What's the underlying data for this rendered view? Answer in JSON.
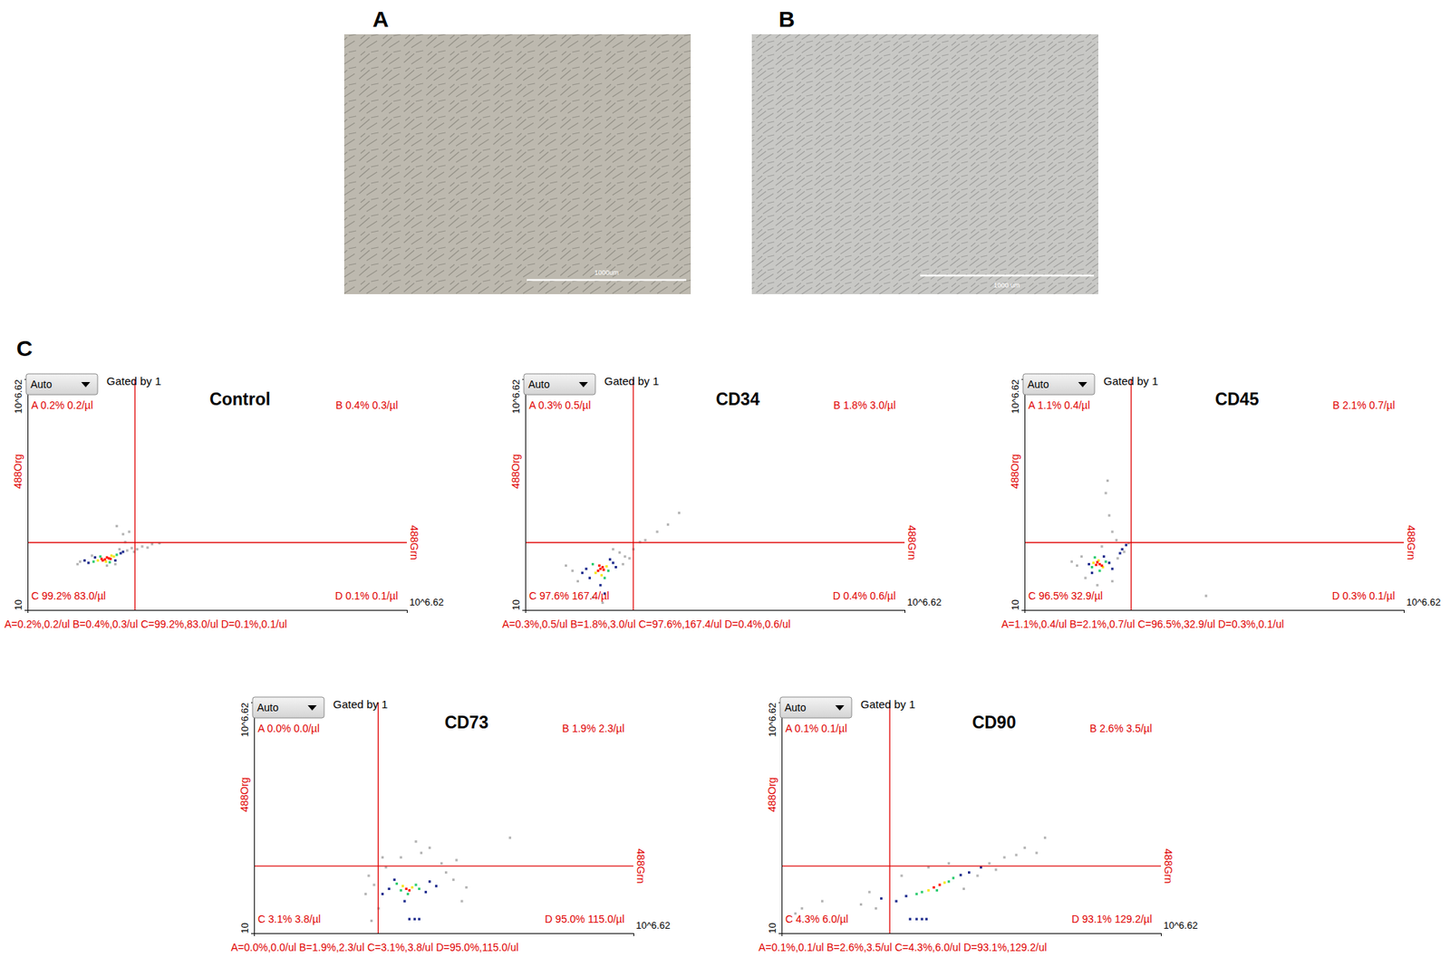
{
  "figure": {
    "panel_labels": [
      "A",
      "B",
      "C"
    ],
    "images": [
      {
        "scale_bar": "1000um"
      },
      {
        "scale_bar": "1000 um"
      }
    ]
  },
  "chart_data": [
    {
      "type": "scatter",
      "title": "Control",
      "xlabel": "488Grn",
      "ylabel": "488Org",
      "log": true,
      "xlim": [
        10,
        4168694
      ],
      "ylim": [
        10,
        4168694
      ],
      "xticks": [
        {
          "value": 4168694,
          "label": "10^6.62"
        }
      ],
      "yticks": [
        10,
        {
          "value": 4168694,
          "label": "10^6.62"
        }
      ],
      "gate": {
        "x": 390,
        "y": 437
      },
      "annotations": {
        "dropdown": "Auto",
        "gate_note": "Gated by 1",
        "quadrants": [
          "A 0.2% 0.2/µl",
          "B 0.4% 0.3/µl",
          "C 99.2% 83.0/µl",
          "D 0.1% 0.1/µl"
        ],
        "summary": "A=0.2%,0.2/ul B=0.4%,0.3/ul C=99.2%,83.0/ul D=0.1%,0.1/ul"
      },
      "series": [
        {
          "color": "#b4b4b4",
          "x": [
            60,
            300,
            350,
            420,
            380,
            55,
            230,
            500,
            260,
            210,
            320,
            280,
            90,
            700,
            900,
            600,
            150,
            200
          ],
          "values": [
            150,
            280,
            320,
            300,
            260,
            130,
            300,
            350,
            700,
            1100,
            800,
            450,
            210,
            400,
            420,
            330,
            120,
            130
          ]
        },
        {
          "color": "#1c2a8c",
          "x": [
            80,
            240,
            100,
            200,
            70,
            260
          ],
          "values": [
            140,
            240,
            190,
            160,
            160,
            260
          ]
        },
        {
          "color": "#2ecc71",
          "x": [
            95,
            210,
            120,
            165
          ],
          "values": [
            150,
            220,
            200,
            145
          ]
        },
        {
          "color": "#f5e616",
          "x": [
            110,
            190,
            145,
            175
          ],
          "values": [
            160,
            200,
            150,
            210
          ]
        },
        {
          "color": "#ff1a00",
          "x": [
            140,
            160,
            130,
            150,
            170,
            125
          ],
          "values": [
            170,
            180,
            160,
            190,
            175,
            175
          ]
        }
      ]
    },
    {
      "type": "scatter",
      "title": "CD34",
      "xlabel": "488Grn",
      "ylabel": "488Org",
      "log": true,
      "xlim": [
        10,
        4168694
      ],
      "ylim": [
        10,
        4168694
      ],
      "xticks": [
        {
          "value": 4168694,
          "label": "10^6.62"
        }
      ],
      "yticks": [
        10,
        {
          "value": 4168694,
          "label": "10^6.62"
        }
      ],
      "gate": {
        "x": 398,
        "y": 437
      },
      "annotations": {
        "dropdown": "Auto",
        "gate_note": "Gated by 1",
        "quadrants": [
          "A 0.3% 0.5/µl",
          "B 1.8% 3.0/µl",
          "C 97.6% 167.4/µl",
          "D 0.4% 0.6/µl"
        ],
        "summary": "A=0.3%,0.5/ul B=1.8%,3.0/ul C=97.6%,167.4/ul D=0.4%,0.6/ul"
      },
      "series": [
        {
          "color": "#b4b4b4",
          "x": [
            50,
            40,
            300,
            400,
            600,
            900,
            1300,
            1900,
            250,
            350,
            60,
            140,
            100,
            500,
            280,
            200
          ],
          "values": [
            90,
            120,
            200,
            300,
            500,
            800,
            1200,
            2300,
            250,
            180,
            50,
            15,
            20,
            450,
            130,
            300
          ]
        },
        {
          "color": "#1c2a8c",
          "x": [
            80,
            200,
            90,
            180,
            130,
            150,
            220,
            70
          ],
          "values": [
            100,
            140,
            60,
            170,
            40,
            25,
            110,
            80
          ]
        },
        {
          "color": "#2ecc71",
          "x": [
            100,
            170,
            150
          ],
          "values": [
            130,
            90,
            60
          ]
        },
        {
          "color": "#f5e616",
          "x": [
            110,
            160,
            135
          ],
          "values": [
            80,
            115,
            70
          ]
        },
        {
          "color": "#ff1a00",
          "x": [
            130,
            120,
            140,
            125,
            145
          ],
          "values": [
            100,
            90,
            110,
            120,
            95
          ]
        }
      ]
    },
    {
      "type": "scatter",
      "title": "CD45",
      "xlabel": "488Grn",
      "ylabel": "488Org",
      "log": true,
      "xlim": [
        10,
        4168694
      ],
      "ylim": [
        10,
        4168694
      ],
      "xticks": [
        {
          "value": 4168694,
          "label": "10^6.62"
        }
      ],
      "yticks": [
        10,
        {
          "value": 4168694,
          "label": "10^6.62"
        }
      ],
      "gate": {
        "x": 380,
        "y": 437
      },
      "annotations": {
        "dropdown": "Auto",
        "gate_note": "Gated by 1",
        "quadrants": [
          "A 1.1% 0.4/µl",
          "B 2.1% 0.7/µl",
          "C 96.5% 32.9/µl",
          "D 0.3% 0.1/µl"
        ],
        "summary": "A=1.1%,0.4/ul B=2.1%,0.7/ul C=96.5%,32.9/ul D=0.3%,0.1/ul"
      },
      "series": [
        {
          "color": "#b4b4b4",
          "x": [
            60,
            50,
            230,
            200,
            180,
            170,
            160,
            4900,
            80,
            120,
            200,
            240,
            300,
            350,
            70,
            140
          ],
          "values": [
            120,
            150,
            500,
            800,
            2000,
            14000,
            7000,
            22,
            60,
            40,
            50,
            180,
            260,
            420,
            200,
            350
          ]
        },
        {
          "color": "#1c2a8c",
          "x": [
            90,
            180,
            150,
            100,
            200,
            260,
            280,
            320
          ],
          "values": [
            130,
            140,
            200,
            80,
            100,
            240,
            300,
            380
          ]
        },
        {
          "color": "#2ecc71",
          "x": [
            100,
            160,
            130,
            110
          ],
          "values": [
            110,
            150,
            90,
            190
          ]
        },
        {
          "color": "#f5e616",
          "x": [
            125,
            145,
            105
          ],
          "values": [
            160,
            110,
            140
          ]
        },
        {
          "color": "#ff1a00",
          "x": [
            130,
            120,
            140,
            115
          ],
          "values": [
            130,
            145,
            120,
            125
          ]
        }
      ]
    },
    {
      "type": "scatter",
      "title": "CD73",
      "xlabel": "488Grn",
      "ylabel": "488Org",
      "log": true,
      "xlim": [
        10,
        4168694
      ],
      "ylim": [
        10,
        4168694
      ],
      "xticks": [
        {
          "value": 4168694,
          "label": "10^6.62"
        }
      ],
      "yticks": [
        10,
        {
          "value": 4168694,
          "label": "10^6.62"
        }
      ],
      "gate": {
        "x": 690,
        "y": 430
      },
      "annotations": {
        "dropdown": "Auto",
        "gate_note": "Gated by 1",
        "quadrants": [
          "A 0.0% 0.0/µl",
          "B 1.9% 2.3/µl",
          "C 3.1% 3.8/µl",
          "D 95.0% 115.0/µl"
        ],
        "summary": "A=0.0%,0.0/ul B=1.9%,2.3/ul C=3.1%,3.8/ul D=95.0%,115.0/ul"
      },
      "series": [
        {
          "color": "#b4b4b4",
          "x": [
            600,
            500,
            450,
            7000,
            9000,
            14000,
            6000,
            3000,
            2500,
            62000,
            900,
            700,
            550,
            10000,
            4000,
            1500,
            12000,
            800
          ],
          "values": [
            150,
            250,
            90,
            300,
            200,
            130,
            500,
            900,
            1700,
            2100,
            400,
            40,
            20,
            600,
            1200,
            700,
            60,
            700
          ]
        },
        {
          "color": "#1c2a8c",
          "x": [
            1000,
            3500,
            1200,
            4000,
            1700,
            2400,
            2000,
            2800,
            800,
            5000
          ],
          "values": [
            120,
            100,
            200,
            180,
            60,
            22,
            22,
            22,
            90,
            140
          ]
        },
        {
          "color": "#2ecc71",
          "x": [
            1500,
            2500,
            1900,
            1300,
            2800
          ],
          "values": [
            110,
            150,
            90,
            160,
            120
          ]
        },
        {
          "color": "#f5e616",
          "x": [
            1600,
            2200
          ],
          "values": [
            140,
            130
          ]
        },
        {
          "color": "#ff1a00",
          "x": [
            1800,
            2000
          ],
          "values": [
            120,
            110
          ]
        }
      ]
    },
    {
      "type": "scatter",
      "title": "CD90",
      "xlabel": "488Grn",
      "ylabel": "488Org",
      "log": true,
      "xlim": [
        10,
        4168694
      ],
      "ylim": [
        10,
        4168694
      ],
      "xticks": [
        {
          "value": 4168694,
          "label": "10^6.62"
        }
      ],
      "yticks": [
        10,
        {
          "value": 4168694,
          "label": "10^6.62"
        }
      ],
      "gate": {
        "x": 400,
        "y": 430
      },
      "annotations": {
        "dropdown": "Auto",
        "gate_note": "Gated by 1",
        "quadrants": [
          "A 0.1% 0.1/µl",
          "B 2.6% 3.5/µl",
          "C 4.3% 6.0/µl",
          "D 93.1% 129.2/µl"
        ],
        "summary": "A=0.1%,0.1/ul B=2.6%,3.5/ul C=4.3%,6.0/ul D=93.1%,129.2/ul"
      },
      "series": [
        {
          "color": "#b4b4b4",
          "x": [
            150,
            40,
            20,
            16,
            12000,
            20000,
            40000,
            80000,
            30000,
            250,
            600,
            8000,
            3000,
            1500,
            200,
            5000,
            15000,
            60000
          ],
          "values": [
            50,
            60,
            40,
            30,
            500,
            700,
            1200,
            2100,
            800,
            40,
            250,
            250,
            500,
            400,
            100,
            120,
            350,
            900
          ]
        },
        {
          "color": "#1c2a8c",
          "x": [
            700,
            4500,
            500,
            6000,
            800,
            1000,
            1200,
            1400,
            9000,
            300
          ],
          "values": [
            80,
            260,
            60,
            300,
            22,
            22,
            22,
            22,
            400,
            70
          ]
        },
        {
          "color": "#2ecc71",
          "x": [
            1200,
            3000,
            1000,
            3500,
            2000
          ],
          "values": [
            100,
            180,
            90,
            220,
            110
          ]
        },
        {
          "color": "#f5e616",
          "x": [
            1500,
            2600
          ],
          "values": [
            110,
            170
          ]
        },
        {
          "color": "#ff1a00",
          "x": [
            1800,
            2200
          ],
          "values": [
            130,
            150
          ]
        }
      ]
    }
  ]
}
